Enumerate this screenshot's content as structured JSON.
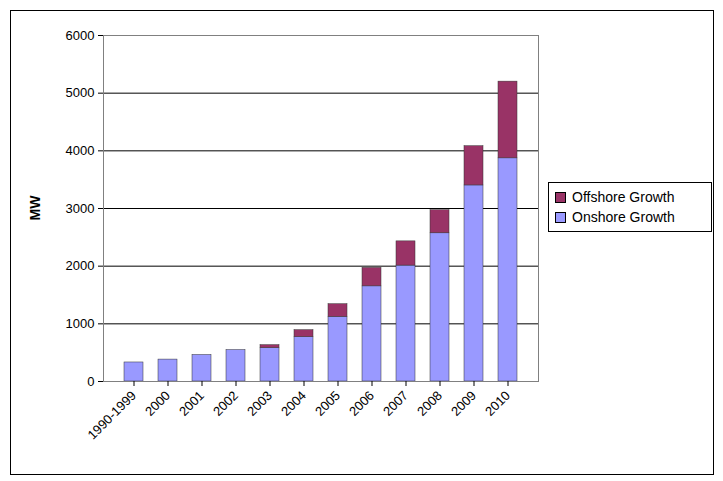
{
  "chart_data": {
    "type": "bar",
    "stacked": true,
    "grid": true,
    "legend": "right",
    "ylabel": "MW",
    "categories": [
      "1990-1999",
      "2000",
      "2001",
      "2002",
      "2003",
      "2004",
      "2005",
      "2006",
      "2007",
      "2008",
      "2009",
      "2010"
    ],
    "series": [
      {
        "name": "Onshore Growth",
        "color": "#9999ff",
        "values": [
          330,
          380,
          460,
          545,
          580,
          770,
          1120,
          1650,
          2010,
          2570,
          3400,
          3870
        ]
      },
      {
        "name": "Offshore Growth",
        "color": "#993366",
        "values": [
          0,
          0,
          0,
          0,
          50,
          120,
          220,
          320,
          420,
          400,
          680,
          1330
        ]
      }
    ],
    "ylim": [
      0,
      6000
    ],
    "yticks": [
      0,
      1000,
      2000,
      3000,
      4000,
      5000,
      6000
    ]
  }
}
